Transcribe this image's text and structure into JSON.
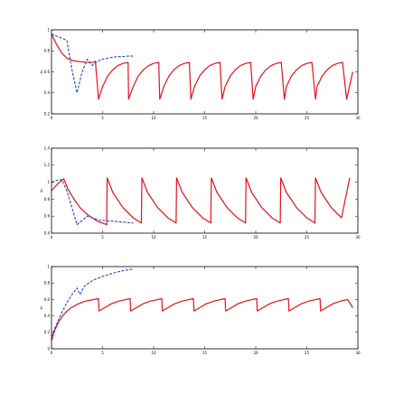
{
  "chart_data": [
    {
      "type": "line",
      "ylabel": "x₁",
      "xlim": [
        0,
        30
      ],
      "ylim": [
        0.2,
        1.0
      ],
      "xticks": [
        "0",
        "5",
        "10",
        "15",
        "20",
        "25",
        "30"
      ],
      "yticks": [
        "0.2",
        "0.4",
        "0.6",
        "0.8",
        "1"
      ],
      "grid": false,
      "series": [
        {
          "color": "#e8101a",
          "style": "solid",
          "x": [
            0,
            0.5,
            1.0,
            1.5,
            2.0,
            2.5,
            3.0,
            3.5,
            4.0,
            4.3,
            4.6,
            5.0,
            5.5,
            6.0,
            6.5,
            7.0,
            7.5,
            7.55,
            8.0,
            8.5,
            9.0,
            9.5,
            10.0,
            10.5,
            10.6,
            11.0,
            11.5,
            12.0,
            12.5,
            13.0,
            13.5,
            13.65,
            14.0,
            14.5,
            15.0,
            15.5,
            16.0,
            16.5,
            16.7,
            17.0,
            17.5,
            18.0,
            18.5,
            19.0,
            19.5,
            19.75,
            20.0,
            20.5,
            21.0,
            21.5,
            22.0,
            22.5,
            22.8,
            23.0,
            23.5,
            24.0,
            24.5,
            25.0,
            25.5,
            25.85,
            26.0,
            26.5,
            27.0,
            27.5,
            28.0,
            28.5,
            28.9,
            29.5
          ],
          "y": [
            0.96,
            0.86,
            0.78,
            0.73,
            0.71,
            0.7,
            0.695,
            0.69,
            0.69,
            0.7,
            0.34,
            0.46,
            0.56,
            0.62,
            0.66,
            0.68,
            0.69,
            0.34,
            0.46,
            0.56,
            0.62,
            0.66,
            0.68,
            0.69,
            0.34,
            0.46,
            0.56,
            0.62,
            0.66,
            0.68,
            0.69,
            0.34,
            0.46,
            0.56,
            0.62,
            0.66,
            0.68,
            0.69,
            0.34,
            0.46,
            0.56,
            0.62,
            0.66,
            0.68,
            0.69,
            0.34,
            0.46,
            0.56,
            0.62,
            0.66,
            0.68,
            0.69,
            0.34,
            0.46,
            0.56,
            0.62,
            0.66,
            0.68,
            0.69,
            0.34,
            0.46,
            0.56,
            0.62,
            0.66,
            0.68,
            0.69,
            0.34,
            0.6
          ]
        },
        {
          "color": "#2146d8",
          "style": "dashed",
          "x": [
            0,
            0.5,
            1.0,
            1.5,
            2.0,
            2.5,
            3.0,
            3.5,
            4.0,
            4.5,
            5.0,
            5.5,
            6.0,
            6.5,
            7.0,
            7.5,
            8.0
          ],
          "y": [
            0.96,
            0.94,
            0.92,
            0.9,
            0.62,
            0.4,
            0.6,
            0.72,
            0.66,
            0.7,
            0.72,
            0.73,
            0.74,
            0.745,
            0.745,
            0.75,
            0.75
          ]
        }
      ]
    },
    {
      "type": "line",
      "ylabel": "x₂",
      "xlim": [
        0,
        30
      ],
      "ylim": [
        0.4,
        1.4
      ],
      "xticks": [
        "0",
        "5",
        "10",
        "15",
        "20",
        "25",
        "30"
      ],
      "yticks": [
        "0.4",
        "0.6",
        "0.8",
        "1",
        "1.2",
        "1.4"
      ],
      "grid": false,
      "series": [
        {
          "color": "#e8101a",
          "style": "solid",
          "x": [
            0,
            0.6,
            1.2,
            1.6,
            2.2,
            2.8,
            3.5,
            4.5,
            5.4,
            5.45,
            6.0,
            7.0,
            8.0,
            8.8,
            8.85,
            9.4,
            10.4,
            11.4,
            12.2,
            12.25,
            12.8,
            13.8,
            14.8,
            15.6,
            15.65,
            16.2,
            17.2,
            18.2,
            19.0,
            19.05,
            19.6,
            20.6,
            21.6,
            22.4,
            22.45,
            23.0,
            24.0,
            25.0,
            25.8,
            25.85,
            26.4,
            27.4,
            28.4,
            29.2
          ],
          "y": [
            0.9,
            0.98,
            1.04,
            0.92,
            0.8,
            0.7,
            0.62,
            0.54,
            0.5,
            1.05,
            0.88,
            0.7,
            0.58,
            0.52,
            1.05,
            0.88,
            0.7,
            0.58,
            0.52,
            1.05,
            0.88,
            0.7,
            0.58,
            0.52,
            1.05,
            0.88,
            0.7,
            0.58,
            0.52,
            1.05,
            0.88,
            0.7,
            0.58,
            0.52,
            1.05,
            0.88,
            0.7,
            0.58,
            0.52,
            1.05,
            0.88,
            0.7,
            0.58,
            1.05
          ]
        },
        {
          "color": "#2146d8",
          "style": "dashed",
          "x": [
            0,
            0.5,
            1.0,
            1.5,
            2.0,
            2.5,
            3.0,
            3.5,
            4.0,
            4.5,
            5.0,
            5.5,
            6.0,
            6.5,
            7.0,
            7.5,
            8.0
          ],
          "y": [
            1.0,
            1.02,
            1.03,
            0.9,
            0.7,
            0.5,
            0.55,
            0.6,
            0.58,
            0.56,
            0.55,
            0.545,
            0.54,
            0.535,
            0.53,
            0.525,
            0.52
          ]
        }
      ]
    },
    {
      "type": "line",
      "ylabel": "x₃",
      "xlim": [
        0,
        30
      ],
      "ylim": [
        0.0,
        1.0
      ],
      "xticks": [
        "0",
        "5",
        "10",
        "15",
        "20",
        "25",
        "30"
      ],
      "yticks": [
        "0",
        "0.2",
        "0.4",
        "0.6",
        "0.8",
        "1"
      ],
      "grid": false,
      "series": [
        {
          "color": "#e8101a",
          "style": "solid",
          "x": [
            0,
            0.3,
            0.7,
            1.2,
            1.8,
            2.5,
            3.3,
            4.2,
            4.6,
            4.65,
            5.2,
            5.9,
            6.6,
            7.3,
            7.7,
            7.75,
            8.3,
            9.0,
            9.7,
            10.4,
            10.8,
            10.85,
            11.4,
            12.1,
            12.8,
            13.5,
            13.9,
            13.95,
            14.5,
            15.2,
            15.9,
            16.6,
            17.0,
            17.05,
            17.6,
            18.3,
            19.0,
            19.7,
            20.1,
            20.15,
            20.7,
            21.4,
            22.1,
            22.8,
            23.2,
            23.25,
            23.8,
            24.5,
            25.2,
            25.9,
            26.3,
            26.35,
            26.9,
            27.6,
            28.3,
            29.0,
            29.5
          ],
          "y": [
            0.1,
            0.22,
            0.33,
            0.42,
            0.49,
            0.54,
            0.58,
            0.6,
            0.61,
            0.46,
            0.5,
            0.55,
            0.58,
            0.6,
            0.61,
            0.46,
            0.5,
            0.55,
            0.58,
            0.6,
            0.61,
            0.46,
            0.5,
            0.55,
            0.58,
            0.6,
            0.61,
            0.46,
            0.5,
            0.55,
            0.58,
            0.6,
            0.61,
            0.46,
            0.5,
            0.55,
            0.58,
            0.6,
            0.61,
            0.46,
            0.5,
            0.55,
            0.58,
            0.6,
            0.61,
            0.46,
            0.5,
            0.55,
            0.58,
            0.6,
            0.61,
            0.46,
            0.5,
            0.55,
            0.58,
            0.6,
            0.5
          ]
        },
        {
          "color": "#2146d8",
          "style": "dashed",
          "x": [
            0,
            0.5,
            1.0,
            1.5,
            2.0,
            2.5,
            2.8,
            3.2,
            4.0,
            5.0,
            6.0,
            7.0,
            8.0
          ],
          "y": [
            0.15,
            0.3,
            0.44,
            0.56,
            0.66,
            0.74,
            0.66,
            0.76,
            0.83,
            0.88,
            0.92,
            0.95,
            0.97
          ]
        }
      ]
    }
  ]
}
